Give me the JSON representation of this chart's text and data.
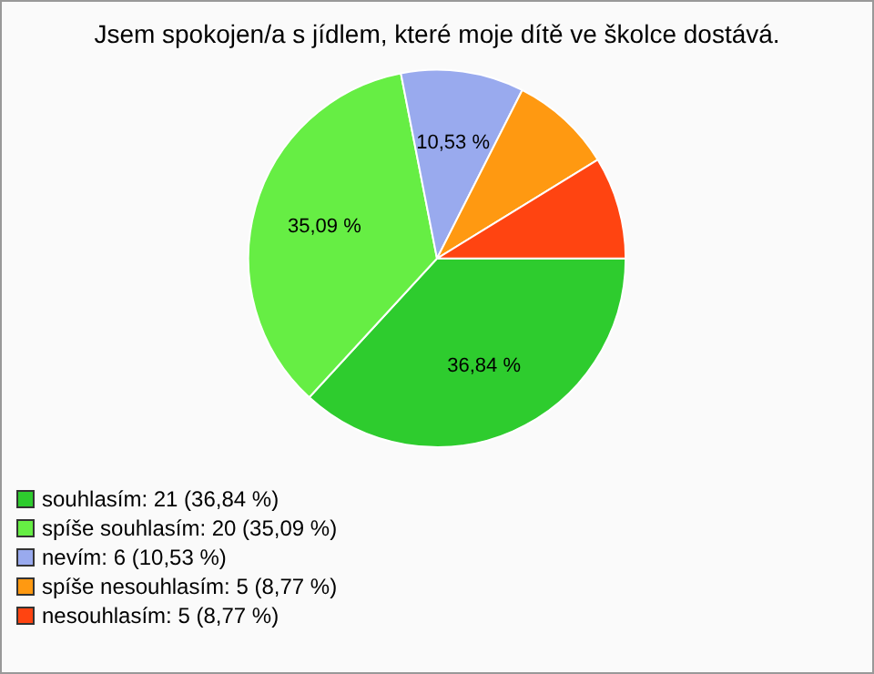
{
  "chart_data": {
    "type": "pie",
    "title": "Jsem spokojen/a s jídlem, které moje dítě ve školce dostává.",
    "categories": [
      "souhlasím: 21 (36,84 %)",
      "spíše souhlasím: 20 (35,09 %)",
      "nevím: 6 (10,53 %)",
      "spíše nesouhlasím: 5 (8,77 %)",
      "nesouhlasím: 5 (8,77 %)"
    ],
    "values": [
      36.84,
      35.09,
      10.53,
      8.77,
      8.77
    ],
    "colors": [
      "#2ecc2e",
      "#66ee44",
      "#99aaee",
      "#ff9911",
      "#ff4411"
    ],
    "value_labels": [
      "36,84 %",
      "35,09 %",
      "10,53 %",
      null,
      null
    ],
    "legend": "bottom left"
  }
}
